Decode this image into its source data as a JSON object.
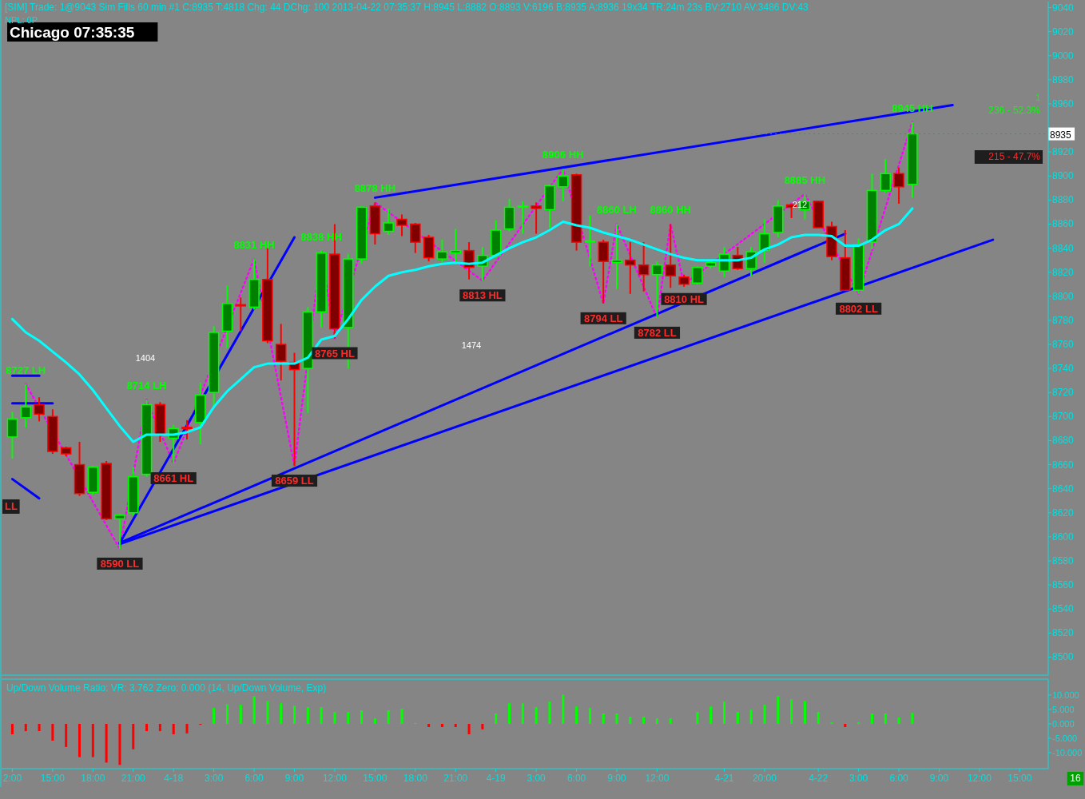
{
  "chart_data": [
    {
      "type": "candlestick",
      "title": "[SIM]  Trade: 1@9043  Sim Fills  60 min  #1 C:8935 T:4818 Chg: 44 DChg: 100 2013-04-22 07:35:37 H:8945 L:8882 O:8893 V:6196 B:8935 A:8936 19x34 TR:24m 23s BV:2710 AV:3486 DV:43",
      "subtitle": "NPL: 0P",
      "categories": [
        null,
        null,
        null,
        null,
        null,
        null,
        null,
        null,
        null,
        null,
        null,
        null,
        null,
        null,
        null,
        null,
        null,
        null,
        null,
        null,
        null,
        null,
        null,
        null,
        null,
        null,
        null,
        null,
        null,
        null,
        null,
        null,
        null,
        null,
        null,
        null,
        null,
        null,
        null,
        null,
        null,
        null,
        null,
        null,
        null,
        null,
        null,
        null,
        null,
        null,
        null,
        null,
        null,
        null,
        null,
        null,
        null,
        null,
        null,
        null,
        null,
        null,
        null,
        null,
        null,
        null,
        null,
        null,
        null,
        null,
        null,
        null,
        null,
        null,
        null,
        null
      ],
      "ohlc": [
        [
          8683,
          8704,
          8665,
          8698
        ],
        [
          8699,
          8727,
          8691,
          8708
        ],
        [
          8710,
          8716,
          8696,
          8702
        ],
        [
          8700,
          8706,
          8669,
          8671
        ],
        [
          8674,
          8675,
          8667,
          8669
        ],
        [
          8660,
          8679,
          8634,
          8636
        ],
        [
          8637,
          8659,
          8635,
          8658
        ],
        [
          8661,
          8663,
          8614,
          8615
        ],
        [
          8615,
          8619,
          8590,
          8618
        ],
        [
          8620,
          8658,
          8618,
          8650
        ],
        [
          8652,
          8714,
          8650,
          8710
        ],
        [
          8710,
          8712,
          8679,
          8685
        ],
        [
          8682,
          8693,
          8661,
          8690
        ],
        [
          8691,
          8697,
          8681,
          8690
        ],
        [
          8695,
          8728,
          8677,
          8718
        ],
        [
          8720,
          8775,
          8708,
          8770
        ],
        [
          8771,
          8809,
          8757,
          8794
        ],
        [
          8793,
          8799,
          8771,
          8792
        ],
        [
          8791,
          8831,
          8789,
          8814
        ],
        [
          8814,
          8840,
          8761,
          8763
        ],
        [
          8760,
          8777,
          8730,
          8746
        ],
        [
          8745,
          8753,
          8659,
          8739
        ],
        [
          8740,
          8791,
          8703,
          8787
        ],
        [
          8787,
          8838,
          8774,
          8836
        ],
        [
          8835,
          8860,
          8765,
          8773
        ],
        [
          8774,
          8835,
          8740,
          8831
        ],
        [
          8831,
          8875,
          8827,
          8874
        ],
        [
          8875,
          8878,
          8843,
          8852
        ],
        [
          8854,
          8873,
          8851,
          8861
        ],
        [
          8864,
          8868,
          8850,
          8859
        ],
        [
          8860,
          8861,
          8836,
          8845
        ],
        [
          8849,
          8851,
          8829,
          8832
        ],
        [
          8831,
          8847,
          8828,
          8837
        ],
        [
          8836,
          8856,
          8829,
          8838
        ],
        [
          8838,
          8845,
          8814,
          8824
        ],
        [
          8825,
          8841,
          8813,
          8834
        ],
        [
          8834,
          8863,
          8832,
          8855
        ],
        [
          8856,
          8881,
          8854,
          8874
        ],
        [
          8874,
          8879,
          8852,
          8875
        ],
        [
          8875,
          8878,
          8852,
          8873
        ],
        [
          8872,
          8893,
          8857,
          8892
        ],
        [
          8891,
          8906,
          8879,
          8900
        ],
        [
          8901,
          8902,
          8838,
          8845
        ],
        [
          8845,
          8867,
          8825,
          8846
        ],
        [
          8845,
          8847,
          8794,
          8829
        ],
        [
          8828,
          8860,
          8806,
          8830
        ],
        [
          8830,
          8845,
          8802,
          8826
        ],
        [
          8826,
          8845,
          8804,
          8818
        ],
        [
          8818,
          8829,
          8782,
          8826
        ],
        [
          8826,
          8860,
          8807,
          8817
        ],
        [
          8816,
          8818,
          8808,
          8810
        ],
        [
          8811,
          8825,
          8810,
          8824
        ],
        [
          8825,
          8829,
          8823,
          8828
        ],
        [
          8821,
          8841,
          8816,
          8835
        ],
        [
          8834,
          8841,
          8822,
          8823
        ],
        [
          8823,
          8841,
          8817,
          8837
        ],
        [
          8838,
          8864,
          8828,
          8852
        ],
        [
          8853,
          8880,
          8849,
          8875
        ],
        [
          8876,
          8877,
          8865,
          8874
        ],
        [
          8872,
          8885,
          8864,
          8879
        ],
        [
          8879,
          8879,
          8857,
          8857
        ],
        [
          8858,
          8862,
          8830,
          8833
        ],
        [
          8832,
          8855,
          8805,
          8805
        ],
        [
          8805,
          8848,
          8802,
          8843
        ],
        [
          8845,
          8902,
          8839,
          8888
        ],
        [
          8888,
          8914,
          8886,
          8902
        ],
        [
          8902,
          8907,
          8877,
          8891
        ],
        [
          8893,
          8945,
          8882,
          8935
        ],
        null,
        null,
        null,
        null,
        null,
        null,
        null,
        null
      ],
      "colors": [
        "#008000",
        "#008000",
        "#800000",
        "#800000",
        "#800000",
        "#800000",
        "#008000",
        "#800000",
        "#008000",
        "#008000",
        "#008000",
        "#800000",
        "#008000",
        "#800000",
        "#008000",
        "#008000",
        "#008000",
        "#800000",
        "#008000",
        "#800000",
        "#800000",
        "#800000",
        "#008000",
        "#008000",
        "#800000",
        "#008000",
        "#008000",
        "#800000",
        "#008000",
        "#800000",
        "#800000",
        "#800000",
        "#008000",
        "#008000",
        "#800000",
        "#008000",
        "#008000",
        "#008000",
        "#008000",
        "#800000",
        "#008000",
        "#008000",
        "#800000",
        "#008000",
        "#800000",
        "#008000",
        "#800000",
        "#800000",
        "#008000",
        "#800000",
        "#800000",
        "#008000",
        "#008000",
        "#008000",
        "#800000",
        "#008000",
        "#008000",
        "#008000",
        "#800000",
        "#008000",
        "#800000",
        "#800000",
        "#800000",
        "#008000",
        "#008000",
        "#008000",
        "#800000",
        "#008000",
        null,
        null,
        null,
        null,
        null,
        null,
        null,
        null
      ],
      "series": [
        {
          "type": "line",
          "color": "#00ffff",
          "values": [
            8781,
            8770,
            8763,
            8754,
            8745,
            8735,
            8722,
            8707,
            8692,
            8679,
            8685,
            8685,
            8685,
            8687,
            8691,
            8708,
            8721,
            8731,
            8741,
            8744,
            8744,
            8744,
            8749,
            8764,
            8767,
            8781,
            8797,
            8808,
            8817,
            8820,
            8822,
            8825,
            8827,
            8828,
            8827,
            8828,
            8834,
            8840,
            8845,
            8849,
            8855,
            8862,
            8859,
            8857,
            8853,
            8850,
            8847,
            8843,
            8839,
            8835,
            8832,
            8830,
            8830,
            8830,
            8830,
            8832,
            8839,
            8843,
            8849,
            8851,
            8851,
            8850,
            8842,
            8842,
            8847,
            8855,
            8860,
            8873,
            null,
            null,
            null,
            null,
            null,
            null,
            null,
            null
          ]
        },
        {
          "type": "line",
          "color": "#ff00ff",
          "line_style": "dotted",
          "values": [
            null,
            8727,
            null,
            null,
            null,
            null,
            null,
            null,
            8590,
            null,
            8714,
            null,
            8661,
            null,
            null,
            null,
            null,
            null,
            8831,
            null,
            null,
            8659,
            null,
            8838,
            8765,
            null,
            null,
            8878,
            null,
            null,
            null,
            null,
            null,
            null,
            null,
            8813,
            null,
            null,
            null,
            null,
            null,
            8906,
            null,
            null,
            8794,
            8860,
            null,
            null,
            8782,
            8860,
            8810,
            null,
            null,
            null,
            null,
            null,
            null,
            null,
            null,
            8885,
            null,
            null,
            null,
            8802,
            null,
            null,
            null,
            8945,
            null,
            null,
            null,
            null,
            null,
            null,
            null,
            null
          ],
          "value_labels": [
            null,
            "8727 LH",
            null,
            null,
            null,
            null,
            null,
            null,
            "8590 LL",
            null,
            "8714 LH",
            null,
            "8661 HL",
            null,
            null,
            null,
            null,
            null,
            "8831 HH",
            null,
            null,
            "8659 LL",
            null,
            "8838 HH",
            "8765 HL",
            null,
            null,
            "8878 HH",
            null,
            null,
            null,
            null,
            null,
            null,
            null,
            "8813 HL",
            null,
            null,
            null,
            null,
            null,
            "8906 HH",
            null,
            null,
            "8794 LL",
            "8860 LH",
            null,
            null,
            "8782 LL",
            "8860 HH",
            "8810 HL",
            null,
            null,
            null,
            null,
            null,
            null,
            null,
            null,
            "8885 HH",
            null,
            null,
            null,
            "8802 LL",
            null,
            null,
            null,
            "8945 HH",
            null,
            null,
            null,
            null,
            null,
            null,
            null,
            null
          ]
        },
        {
          "type": "line",
          "color": "#0000ff",
          "values": [
            8648,
            null,
            8632,
            null,
            null,
            null,
            null,
            null,
            null,
            null,
            null,
            null,
            null,
            null,
            null,
            null,
            null,
            null,
            null,
            null,
            null,
            null,
            null,
            null,
            null,
            null,
            null,
            null,
            null,
            null,
            null,
            null,
            null,
            null,
            null,
            null,
            null,
            null,
            null,
            null,
            null,
            null,
            null,
            null,
            null,
            null,
            null,
            null,
            null,
            null,
            null,
            null,
            null,
            null,
            null,
            null,
            null,
            null,
            null,
            null,
            null,
            null,
            null,
            null,
            null,
            null,
            null,
            null,
            null,
            null,
            null,
            null,
            null,
            null,
            null,
            null
          ]
        },
        {
          "type": "line",
          "color": "#0000ff",
          "values": [
            8734,
            null,
            8734,
            null,
            null,
            null,
            null,
            null,
            null,
            null,
            null,
            null,
            null,
            null,
            null,
            null,
            null,
            null,
            null,
            null,
            null,
            null,
            null,
            null,
            null,
            null,
            null,
            null,
            null,
            null,
            null,
            null,
            null,
            null,
            null,
            null,
            null,
            null,
            null,
            null,
            null,
            null,
            null,
            null,
            null,
            null,
            null,
            null,
            null,
            null,
            null,
            null,
            null,
            null,
            null,
            null,
            null,
            null,
            null,
            null,
            null,
            null,
            null,
            null,
            null,
            null,
            null,
            null,
            null,
            null,
            null,
            null,
            null,
            null,
            null,
            null
          ]
        },
        {
          "type": "line",
          "color": "#0000ff",
          "values": [
            8711,
            null,
            null,
            8711,
            null,
            null,
            null,
            null,
            null,
            null,
            null,
            null,
            null,
            null,
            null,
            null,
            null,
            null,
            null,
            null,
            null,
            null,
            null,
            null,
            null,
            null,
            null,
            null,
            null,
            null,
            null,
            null,
            null,
            null,
            null,
            null,
            null,
            null,
            null,
            null,
            null,
            null,
            null,
            null,
            null,
            null,
            null,
            null,
            null,
            null,
            null,
            null,
            null,
            null,
            null,
            null,
            null,
            null,
            null,
            null,
            null,
            null,
            null,
            null,
            null,
            null,
            null,
            null,
            null,
            null,
            null,
            null,
            null,
            null,
            null,
            null
          ]
        },
        {
          "type": "line",
          "color": "#0000ff",
          "values": [
            null,
            null,
            null,
            null,
            null,
            null,
            null,
            null,
            8595,
            null,
            null,
            null,
            null,
            null,
            null,
            null,
            null,
            null,
            null,
            null,
            null,
            8849,
            null,
            null,
            null,
            null,
            null,
            null,
            null,
            null,
            null,
            null,
            null,
            null,
            null,
            null,
            null,
            null,
            null,
            null,
            null,
            null,
            null,
            null,
            null,
            null,
            null,
            null,
            null,
            null,
            null,
            null,
            null,
            null,
            null,
            null,
            null,
            null,
            null,
            null,
            null,
            null,
            null,
            null,
            null,
            null,
            null,
            null,
            null,
            null,
            null,
            null,
            null,
            null,
            null,
            null
          ]
        },
        {
          "type": "line",
          "color": "#0000ff",
          "values": [
            null,
            null,
            null,
            null,
            null,
            null,
            null,
            null,
            8595,
            null,
            null,
            null,
            null,
            null,
            null,
            null,
            null,
            null,
            null,
            null,
            null,
            null,
            null,
            null,
            null,
            null,
            null,
            null,
            null,
            null,
            null,
            null,
            null,
            null,
            null,
            null,
            null,
            null,
            null,
            null,
            null,
            null,
            null,
            null,
            null,
            null,
            null,
            null,
            null,
            null,
            null,
            null,
            null,
            null,
            null,
            null,
            null,
            null,
            null,
            null,
            null,
            null,
            8852,
            null,
            null,
            null,
            null,
            null,
            null,
            null,
            null,
            null,
            null,
            null,
            null,
            null
          ]
        },
        {
          "type": "line",
          "color": "#0000ff",
          "values": [
            null,
            null,
            null,
            null,
            null,
            null,
            null,
            null,
            8594,
            null,
            null,
            null,
            null,
            null,
            null,
            null,
            null,
            null,
            null,
            null,
            null,
            null,
            null,
            null,
            null,
            null,
            null,
            null,
            null,
            null,
            null,
            null,
            null,
            null,
            null,
            null,
            null,
            null,
            null,
            null,
            null,
            null,
            null,
            null,
            null,
            null,
            null,
            null,
            null,
            null,
            null,
            null,
            null,
            null,
            null,
            null,
            null,
            null,
            null,
            null,
            null,
            null,
            null,
            null,
            null,
            null,
            null,
            null,
            null,
            null,
            null,
            null,
            null,
            8847,
            null,
            null
          ]
        },
        {
          "type": "line",
          "color": "#0000ff",
          "values": [
            null,
            null,
            null,
            null,
            null,
            null,
            null,
            null,
            null,
            null,
            null,
            null,
            null,
            null,
            null,
            null,
            null,
            null,
            null,
            null,
            null,
            null,
            null,
            null,
            null,
            null,
            null,
            8882,
            null,
            null,
            null,
            null,
            null,
            null,
            null,
            null,
            null,
            null,
            null,
            null,
            null,
            null,
            null,
            null,
            null,
            null,
            null,
            null,
            null,
            null,
            null,
            null,
            null,
            null,
            null,
            null,
            null,
            null,
            null,
            null,
            null,
            null,
            null,
            null,
            null,
            null,
            null,
            null,
            null,
            null,
            8959,
            null,
            null,
            null,
            null,
            null
          ]
        }
      ],
      "ref_lines": [
        {
          "axis": "y",
          "value": 8935,
          "label": "8935",
          "color": "#00c000",
          "line_style": "dotted"
        }
      ],
      "annotations": [
        "Chicago 07:35:35",
        "1",
        "236 - 52.3%",
        "215 - 47.7%",
        "1404",
        "1474",
        "212",
        "LL"
      ],
      "ylim": [
        8485,
        9045
      ],
      "yticks": [
        8500,
        8520,
        8540,
        8560,
        8580,
        8600,
        8620,
        8640,
        8660,
        8680,
        8700,
        8720,
        8740,
        8760,
        8780,
        8800,
        8820,
        8840,
        8860,
        8880,
        8900,
        8920,
        8960,
        8980,
        9000,
        9020,
        9040
      ],
      "tick_labels": "y"
    },
    {
      "type": "bar",
      "title": "Up/Down Volume Ratio:  VR: 3.762  Zero: 0.000   (14, Up/Down Volume, Exp)",
      "categories": [
        "2:00",
        null,
        null,
        "15:00",
        null,
        null,
        "18:00",
        null,
        null,
        "21:00",
        null,
        null,
        "4-18",
        null,
        null,
        "3:00",
        null,
        null,
        "6:00",
        null,
        null,
        "9:00",
        null,
        null,
        "12:00",
        null,
        null,
        "15:00",
        null,
        null,
        "18:00",
        null,
        null,
        "21:00",
        null,
        null,
        "4-19",
        null,
        null,
        "3:00",
        null,
        null,
        "6:00",
        null,
        null,
        "9:00",
        null,
        null,
        "12:00",
        null,
        null,
        null,
        null,
        "4-21",
        null,
        null,
        "20:00",
        null,
        null,
        null,
        "4-22",
        null,
        null,
        "3:00",
        null,
        null,
        "6:00",
        null,
        null,
        "9:00",
        null,
        null,
        "12:00",
        null,
        null,
        "15:00"
      ],
      "values": [
        -3.6,
        -2.5,
        -2.5,
        -5.8,
        -8,
        -11.5,
        -11.5,
        -13.4,
        -14.2,
        -8.8,
        -2.5,
        -2.5,
        -3.6,
        -3.3,
        -0.3,
        5.5,
        6.8,
        6.6,
        9.6,
        7.9,
        7.1,
        6.3,
        5.8,
        5.8,
        4.1,
        4.1,
        4.7,
        1.9,
        4.7,
        5.2,
        0.3,
        -1.1,
        -1.1,
        -1.1,
        -3.6,
        -1.9,
        3.6,
        7.1,
        7.1,
        5.8,
        7.7,
        10.1,
        6,
        5.5,
        3.6,
        3.6,
        2.5,
        2.5,
        1.9,
        1.9,
        0,
        4.1,
        6,
        7.7,
        4.1,
        4.9,
        6.6,
        9.6,
        8.5,
        7.9,
        4.1,
        0.5,
        -1.1,
        0.5,
        3.6,
        3.6,
        2.2,
        3.8,
        null,
        null,
        null,
        null,
        null,
        null,
        null,
        null
      ],
      "colors": [
        "#ff0000",
        "#ff0000",
        "#ff0000",
        "#ff0000",
        "#ff0000",
        "#ff0000",
        "#ff0000",
        "#ff0000",
        "#ff0000",
        "#ff0000",
        "#ff0000",
        "#ff0000",
        "#ff0000",
        "#ff0000",
        "#ff0000",
        "#00ff00",
        "#00ff00",
        "#00ff00",
        "#00ff00",
        "#00ff00",
        "#00ff00",
        "#00ff00",
        "#00ff00",
        "#00ff00",
        "#00ff00",
        "#00ff00",
        "#00ff00",
        "#00ff00",
        "#00ff00",
        "#00ff00",
        "#00ff00",
        "#ff0000",
        "#ff0000",
        "#ff0000",
        "#ff0000",
        "#ff0000",
        "#00ff00",
        "#00ff00",
        "#00ff00",
        "#00ff00",
        "#00ff00",
        "#00ff00",
        "#00ff00",
        "#00ff00",
        "#00ff00",
        "#00ff00",
        "#00ff00",
        "#00ff00",
        "#00ff00",
        "#00ff00",
        "#00ff00",
        "#00ff00",
        "#00ff00",
        "#00ff00",
        "#00ff00",
        "#00ff00",
        "#00ff00",
        "#00ff00",
        "#00ff00",
        "#00ff00",
        "#00ff00",
        "#00ff00",
        "#ff0000",
        "#00ff00",
        "#00ff00",
        "#00ff00",
        "#00ff00",
        "#00ff00",
        null,
        null,
        null,
        null,
        null,
        null,
        null,
        null
      ],
      "annotations": [
        "16"
      ],
      "ylim": [
        -15.5,
        15.5
      ],
      "yticks": [
        {
          "value": 10,
          "label": "10.000"
        },
        {
          "value": 5,
          "label": "5.000"
        },
        {
          "value": 0,
          "label": "0.000"
        },
        {
          "value": -5,
          "label": "-5.000"
        },
        {
          "value": -10,
          "label": "-10.000"
        }
      ]
    }
  ]
}
